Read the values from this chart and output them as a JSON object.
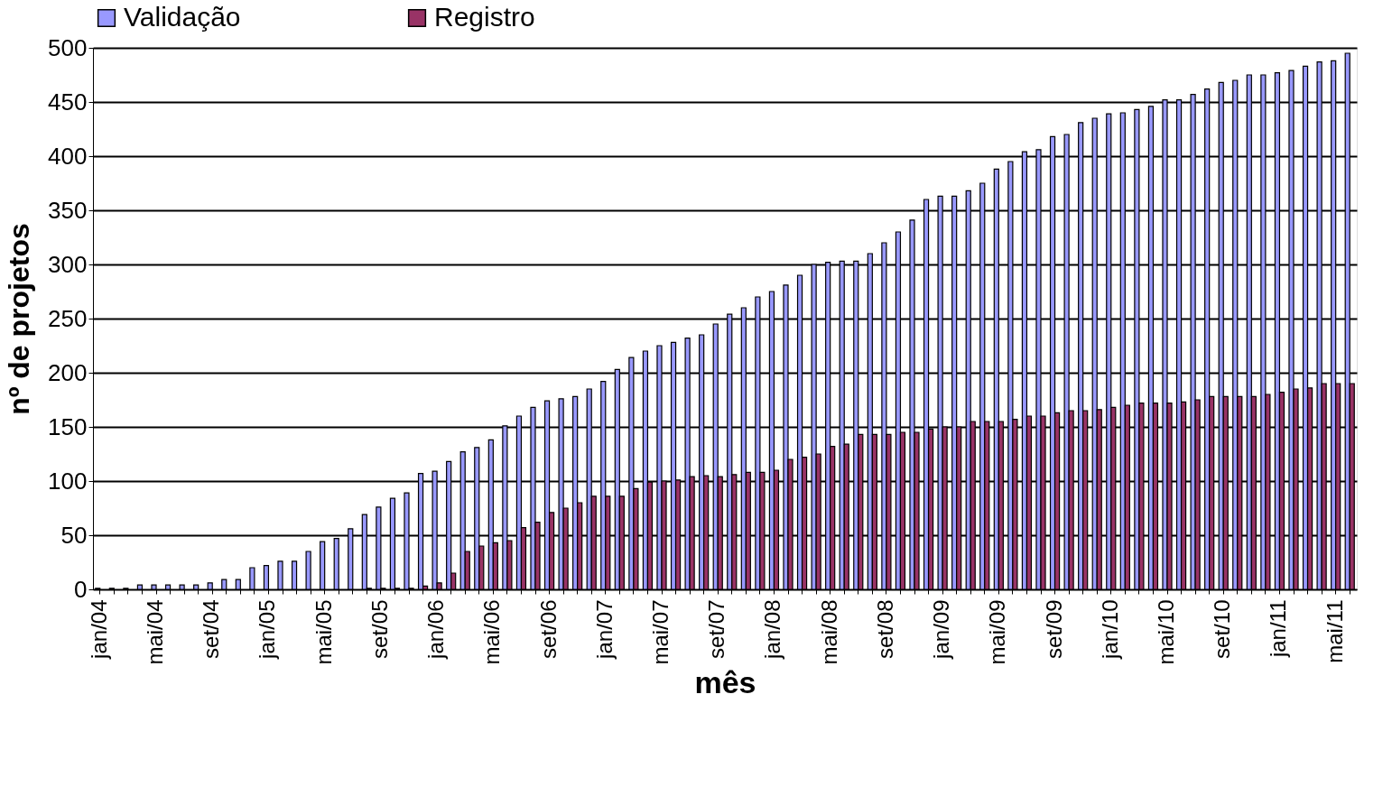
{
  "chart_data": {
    "type": "bar",
    "xlabel": "mês",
    "ylabel": "nº de projetos",
    "categories": [
      "jan/04",
      null,
      null,
      null,
      "mai/04",
      null,
      null,
      null,
      "set/04",
      null,
      null,
      null,
      "jan/05",
      null,
      null,
      null,
      "mai/05",
      null,
      null,
      null,
      "set/05",
      null,
      null,
      null,
      "jan/06",
      null,
      null,
      null,
      "mai/06",
      null,
      null,
      null,
      "set/06",
      null,
      null,
      null,
      "jan/07",
      null,
      null,
      null,
      "mai/07",
      null,
      null,
      null,
      "set/07",
      null,
      null,
      null,
      "jan/08",
      null,
      null,
      null,
      "mai/08",
      null,
      null,
      null,
      "set/08",
      null,
      null,
      null,
      "jan/09",
      null,
      null,
      null,
      "mai/09",
      null,
      null,
      null,
      "set/09",
      null,
      null,
      null,
      "jan/10",
      null,
      null,
      null,
      "mai/10",
      null,
      null,
      null,
      "set/10",
      null,
      null,
      null,
      "jan/11",
      null,
      null,
      null,
      "mai/11",
      null
    ],
    "series": [
      {
        "name": "Validação",
        "color": "#9999ff",
        "values": [
          1,
          1,
          1,
          4,
          4,
          4,
          4,
          4,
          6,
          9,
          9,
          20,
          22,
          26,
          26,
          35,
          44,
          47,
          56,
          69,
          76,
          84,
          89,
          107,
          109,
          118,
          127,
          131,
          138,
          151,
          160,
          168,
          174,
          176,
          178,
          185,
          192,
          203,
          214,
          220,
          225,
          228,
          232,
          235,
          245,
          254,
          260,
          270,
          275,
          281,
          290,
          300,
          302,
          303,
          303,
          310,
          320,
          330,
          341,
          360,
          363,
          363,
          368,
          375,
          388,
          395,
          404,
          406,
          418,
          420,
          431,
          435,
          439,
          440,
          443,
          446,
          452,
          452,
          457,
          462,
          468,
          470,
          475,
          475,
          477,
          479,
          483,
          487,
          488,
          495
        ]
      },
      {
        "name": "Registro",
        "color": "#993366",
        "values": [
          null,
          null,
          null,
          null,
          null,
          null,
          null,
          null,
          null,
          null,
          null,
          null,
          null,
          null,
          null,
          null,
          null,
          null,
          null,
          1,
          1,
          1,
          1,
          3,
          6,
          15,
          35,
          40,
          43,
          45,
          57,
          62,
          71,
          75,
          80,
          86,
          86,
          86,
          93,
          99,
          100,
          101,
          104,
          105,
          104,
          106,
          108,
          108,
          110,
          120,
          122,
          125,
          132,
          134,
          143,
          143,
          143,
          145,
          145,
          148,
          150,
          150,
          155,
          155,
          155,
          157,
          160,
          160,
          163,
          165,
          165,
          166,
          168,
          170,
          172,
          172,
          172,
          173,
          175,
          178,
          178,
          178,
          178,
          180,
          182,
          185,
          186,
          190,
          190,
          190
        ]
      }
    ],
    "ylim": [
      0,
      500
    ],
    "yticks": [
      0,
      50,
      100,
      150,
      200,
      250,
      300,
      350,
      400,
      450,
      500
    ],
    "grid": "y",
    "legend": "top"
  }
}
